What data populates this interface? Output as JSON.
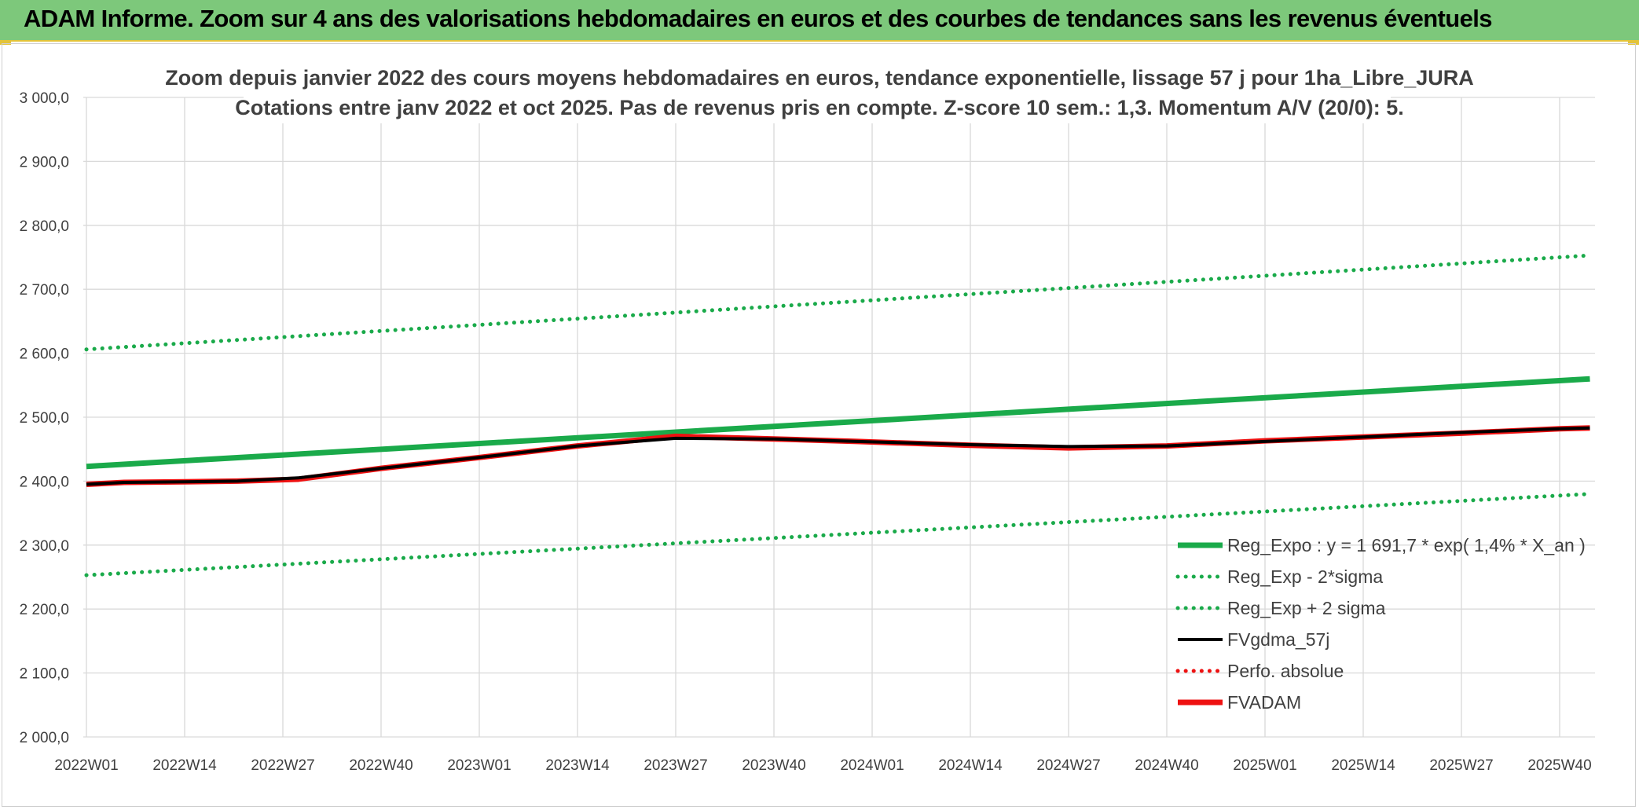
{
  "header": {
    "banner_title": "ADAM Informe. Zoom sur 4 ans des valorisations hebdomadaires en euros et des courbes de tendances sans les revenus éventuels"
  },
  "colors": {
    "banner_bg": "#7dc87b",
    "trend_green": "#1aaa4a",
    "adam_red": "#ee1111",
    "fvgdma_black": "#000000",
    "grid": "#d9d9d9"
  },
  "chart_data": {
    "type": "line",
    "title_lines": [
      "Zoom depuis janvier 2022 des cours moyens hebdomadaires en euros, tendance exponentielle, lissage 57 j pour 1ha_Libre_JURA",
      "Cotations entre janv 2022 et oct 2025. Pas de revenus pris en compte. Z-score 10 sem.: 1,3. Momentum A/V (20/0): 5."
    ],
    "x_tick_labels": [
      "2022W01",
      "2022W14",
      "2022W27",
      "2022W40",
      "2023W01",
      "2023W14",
      "2023W27",
      "2023W40",
      "2024W01",
      "2024W14",
      "2024W27",
      "2024W40",
      "2025W01",
      "2025W14",
      "2025W27",
      "2025W40"
    ],
    "x_range_weeks": [
      0,
      199
    ],
    "ylim": [
      2000,
      3000
    ],
    "y_tick_labels": [
      "2 000,0",
      "2 100,0",
      "2 200,0",
      "2 300,0",
      "2 400,0",
      "2 500,0",
      "2 600,0",
      "2 700,0",
      "2 800,0",
      "2 900,0",
      "3 000,0"
    ],
    "grid": true,
    "legend_position": "bottom-right",
    "series": [
      {
        "name": "Reg_Expo : y = 1 691,7 * exp( 1,4% *  X_an )",
        "style": "solid-thick",
        "color": "#1aaa4a",
        "x": [
          0,
          199
        ],
        "y": [
          2423,
          2560
        ]
      },
      {
        "name": "Reg_Exp - 2*sigma",
        "style": "dotted",
        "color": "#1aaa4a",
        "x": [
          0,
          199
        ],
        "y": [
          2253,
          2380
        ]
      },
      {
        "name": "Reg_Exp + 2 sigma",
        "style": "dotted",
        "color": "#1aaa4a",
        "x": [
          0,
          199
        ],
        "y": [
          2606,
          2753
        ]
      },
      {
        "name": "FVgdma_57j",
        "style": "solid",
        "color": "#000000",
        "x": [
          0,
          5,
          13,
          20,
          28,
          39,
          52,
          65,
          78,
          91,
          102,
          117,
          130,
          143,
          156,
          169,
          182,
          195,
          199
        ],
        "y": [
          2395,
          2398,
          2399,
          2400,
          2405,
          2420,
          2437,
          2455,
          2467,
          2466,
          2462,
          2457,
          2454,
          2455,
          2462,
          2469,
          2476,
          2482,
          2483
        ]
      },
      {
        "name": "Perfo. absolue",
        "style": "dotted",
        "color": "#ee1111",
        "x": [],
        "y": []
      },
      {
        "name": "FVADAM",
        "style": "solid-thick",
        "color": "#ee1111",
        "x": [
          0,
          5,
          13,
          20,
          28,
          39,
          52,
          65,
          78,
          91,
          102,
          117,
          130,
          143,
          156,
          169,
          182,
          195,
          199
        ],
        "y": [
          2395,
          2398,
          2399,
          2400,
          2403,
          2420,
          2437,
          2455,
          2470,
          2466,
          2462,
          2456,
          2452,
          2455,
          2463,
          2469,
          2475,
          2482,
          2483
        ]
      }
    ]
  }
}
